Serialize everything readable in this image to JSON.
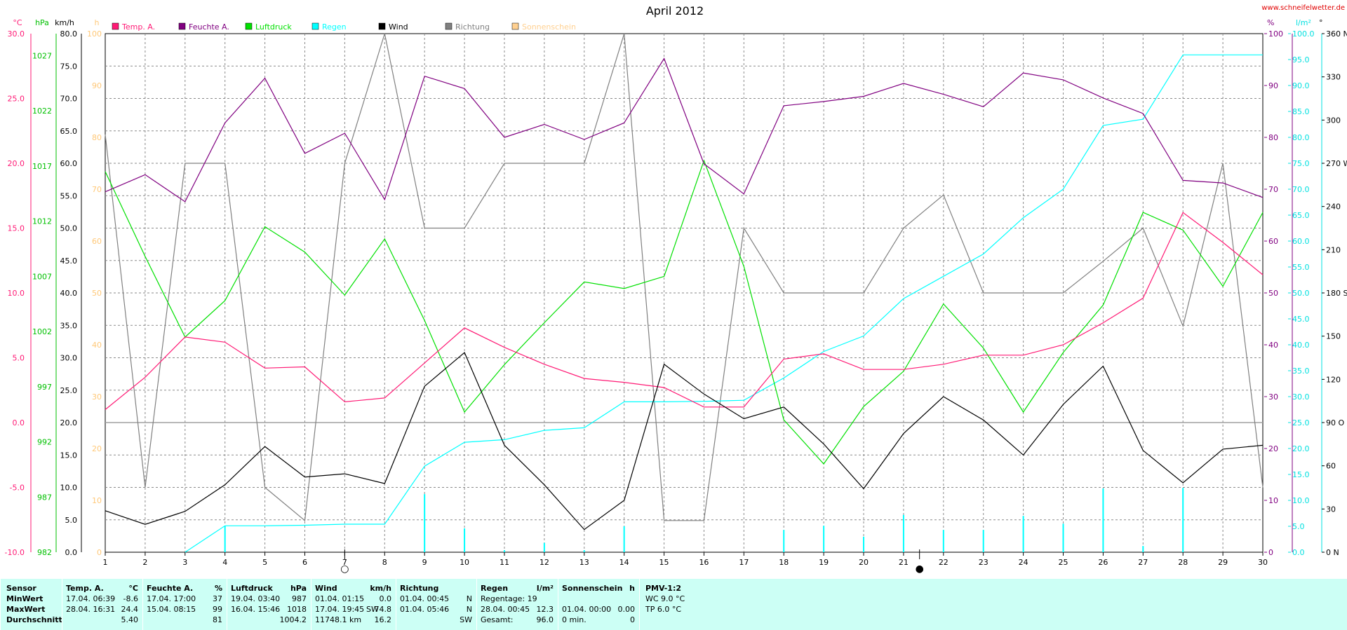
{
  "title": "April 2012",
  "source_url": "www.schneifelwetter.de",
  "legend": [
    {
      "label": "Temp. A.",
      "color": "#ff1a75"
    },
    {
      "label": "Feuchte A.",
      "color": "#800080"
    },
    {
      "label": "Luftdruck",
      "color": "#00e000"
    },
    {
      "label": "Regen",
      "color": "#00ffff"
    },
    {
      "label": "Wind",
      "color": "#000000"
    },
    {
      "label": "Richtung",
      "color": "#808080"
    },
    {
      "label": "Sonnenschein",
      "color": "#ffd090"
    }
  ],
  "axes_left": [
    {
      "unit": "°C",
      "color": "#ff1a75",
      "ticks": [
        "30.0",
        "25.0",
        "20.0",
        "15.0",
        "10.0",
        "5.0",
        "0.0",
        "-5.0",
        "-10.0"
      ]
    },
    {
      "unit": "hPa",
      "color": "#00c000",
      "ticks": [
        "1027",
        "1022",
        "1017",
        "1012",
        "1007",
        "1002",
        "997",
        "992",
        "987",
        "982"
      ]
    },
    {
      "unit": "km/h",
      "color": "#000000",
      "ticks": [
        "80.0",
        "75.0",
        "70.0",
        "65.0",
        "60.0",
        "55.0",
        "50.0",
        "45.0",
        "40.0",
        "35.0",
        "30.0",
        "25.0",
        "20.0",
        "15.0",
        "10.0",
        "5.0",
        "0.0"
      ]
    },
    {
      "unit": "h",
      "color": "#ffc878",
      "ticks": [
        "100",
        "90",
        "80",
        "70",
        "60",
        "50",
        "40",
        "30",
        "20",
        "10",
        "0"
      ]
    }
  ],
  "axes_right": [
    {
      "unit": "%",
      "color": "#800080",
      "ticks": [
        "100",
        "90",
        "80",
        "70",
        "60",
        "50",
        "40",
        "30",
        "20",
        "10",
        "0"
      ]
    },
    {
      "unit": "l/m²",
      "color": "#00e0e0",
      "ticks": [
        "100.0",
        "95.0",
        "90.0",
        "85.0",
        "80.0",
        "75.0",
        "70.0",
        "65.0",
        "60.0",
        "55.0",
        "50.0",
        "45.0",
        "40.0",
        "35.0",
        "30.0",
        "25.0",
        "20.0",
        "15.0",
        "10.0",
        "5.0",
        "0.0"
      ]
    },
    {
      "unit": "°",
      "color": "#000000",
      "ticks": [
        "360 N",
        "330",
        "300",
        "270 W",
        "240",
        "210",
        "180 S",
        "150",
        "120",
        "90 O",
        "60",
        "30",
        "0 N"
      ]
    }
  ],
  "chart_data": {
    "type": "line",
    "title": "April 2012",
    "x": [
      1,
      2,
      3,
      4,
      5,
      6,
      7,
      8,
      9,
      10,
      11,
      12,
      13,
      14,
      15,
      16,
      17,
      18,
      19,
      20,
      21,
      22,
      23,
      24,
      25,
      26,
      27,
      28,
      29,
      30
    ],
    "xlabel": "",
    "series": [
      {
        "name": "Temp. A.",
        "unit": "°C",
        "color": "#ff1a75",
        "ylim": [
          -10,
          30
        ],
        "values": [
          1.0,
          3.5,
          6.6,
          6.2,
          4.2,
          4.3,
          1.6,
          1.9,
          4.6,
          7.3,
          5.8,
          4.5,
          3.4,
          3.1,
          2.7,
          1.2,
          1.2,
          4.9,
          5.3,
          4.1,
          4.1,
          4.5,
          5.2,
          5.2,
          6.0,
          7.7,
          9.6,
          16.2,
          13.9,
          11.4
        ]
      },
      {
        "name": "Feuchte A.",
        "unit": "%",
        "color": "#800080",
        "ylim": [
          0,
          100
        ],
        "values": [
          69.5,
          72.8,
          67.6,
          82.8,
          91.4,
          76.9,
          80.8,
          68.0,
          91.8,
          89.4,
          80.0,
          82.5,
          79.6,
          82.8,
          95.2,
          74.9,
          69.1,
          86.1,
          86.9,
          87.9,
          90.4,
          88.3,
          85.9,
          92.4,
          91.1,
          87.6,
          84.6,
          71.7,
          71.2,
          68.4
        ]
      },
      {
        "name": "Luftdruck",
        "unit": "hPa",
        "color": "#00e000",
        "ylim": [
          982,
          1029
        ],
        "values": [
          1016.5,
          1008.8,
          1001.5,
          1004.8,
          1011.5,
          1009.2,
          1005.3,
          1010.4,
          1003.0,
          994.7,
          999.0,
          1002.8,
          1006.5,
          1005.9,
          1007.0,
          1017.5,
          1007.9,
          994.0,
          990.0,
          995.2,
          998.4,
          1004.5,
          1000.5,
          994.7,
          1000.1,
          1004.4,
          1012.8,
          1011.2,
          1006.1,
          1012.8
        ]
      },
      {
        "name": "Regen",
        "unit": "l/m²",
        "color": "#00ffff",
        "ylim": [
          0,
          100
        ],
        "values": [
          null,
          null,
          0.0,
          5.1,
          5.1,
          5.2,
          5.4,
          5.4,
          16.6,
          21.2,
          21.7,
          23.5,
          24.0,
          29.0,
          29.0,
          29.1,
          29.3,
          33.6,
          38.7,
          41.7,
          48.9,
          53.2,
          57.5,
          64.5,
          70.0,
          82.3,
          83.5,
          95.9,
          95.9,
          95.9
        ]
      },
      {
        "name": "Wind",
        "unit": "km/h",
        "color": "#000000",
        "ylim": [
          0,
          80
        ],
        "values": [
          6.4,
          4.3,
          6.3,
          10.4,
          16.3,
          11.6,
          12.1,
          10.6,
          25.6,
          30.8,
          16.5,
          10.4,
          3.5,
          8.0,
          29.0,
          24.4,
          20.6,
          22.4,
          16.7,
          9.8,
          18.3,
          24.0,
          20.4,
          15.0,
          22.8,
          28.7,
          15.7,
          10.7,
          15.9,
          16.5
        ]
      },
      {
        "name": "Richtung",
        "unit": "°",
        "color": "#808080",
        "ylim": [
          0,
          360
        ],
        "values": [
          290,
          45,
          270,
          270,
          45,
          22,
          270,
          360,
          225,
          225,
          270,
          270,
          270,
          360,
          22,
          22,
          225,
          180,
          180,
          180,
          225,
          248,
          180,
          180,
          180,
          202,
          225,
          157,
          270,
          45
        ]
      },
      {
        "name": "Regen (Tag)",
        "unit": "l/m²",
        "color": "#00ffff",
        "ylim": [
          0,
          100
        ],
        "values": [
          0,
          0,
          0,
          5.1,
          0,
          0,
          0,
          0,
          11.2,
          4.6,
          0.4,
          1.8,
          0.4,
          5.0,
          0,
          0,
          0,
          4.3,
          5.1,
          3.0,
          7.2,
          4.3,
          4.3,
          7.0,
          5.5,
          12.3,
          1.2,
          12.4,
          0,
          0
        ]
      }
    ],
    "markers": [
      {
        "day": 7.0,
        "symbol": "○",
        "label": "Vollmond"
      },
      {
        "day": 21.4,
        "symbol": "●",
        "label": "Neumond"
      }
    ],
    "grid": true,
    "legend_position": "top"
  },
  "stats": {
    "sensor": {
      "header": "Sensor",
      "rows": [
        "MinWert",
        "MaxWert",
        "Durchschnitt"
      ]
    },
    "temp": {
      "header": "Temp. A.",
      "unit": "°C",
      "min_time": "17.04.  06:39",
      "min_val": "-8.6",
      "max_time": "28.04.  16:31",
      "max_val": "24.4",
      "avg": "5.40"
    },
    "feuchte": {
      "header": "Feuchte A.",
      "unit": "%",
      "min_time": "17.04.  17:00",
      "min_val": "37",
      "max_time": "15.04.  08:15",
      "max_val": "99",
      "avg": "81"
    },
    "druck": {
      "header": "Luftdruck",
      "unit": "hPa",
      "min_time": "19.04.  03:40",
      "min_val": "987",
      "max_time": "16.04.  15:46",
      "max_val": "1018",
      "avg": "1004.2"
    },
    "wind": {
      "header": "Wind",
      "unit": "km/h",
      "min_time": "01.04.  01:15",
      "min_val": "0.0",
      "max_time": "17.04.  19:45",
      "max_dir": "SW",
      "max_val": "74.8",
      "distance": "11748.1 km",
      "avg": "16.2"
    },
    "richtung": {
      "header": "Richtung",
      "min_time": "01.04.  00:45",
      "min_val": "N",
      "max_time": "01.04.  05:46",
      "max_val": "N",
      "avg": "SW"
    },
    "regen": {
      "header": "Regen",
      "unit": "l/m²",
      "row1_label": "Regentage: 19",
      "max_time": "28.04.  00:45",
      "max_val": "12.3",
      "total_label": "Gesamt:",
      "total_val": "96.0"
    },
    "sonne": {
      "header": "Sonnenschein",
      "unit": "h",
      "max_time": "01.04.  00:00",
      "max_val": "0.00",
      "total_label": "0 min.",
      "total_val": "0"
    },
    "pmv": {
      "header": "PMV-1:2",
      "wc": "WC 9.0 °C",
      "tp": "TP 6.0 °C"
    }
  }
}
